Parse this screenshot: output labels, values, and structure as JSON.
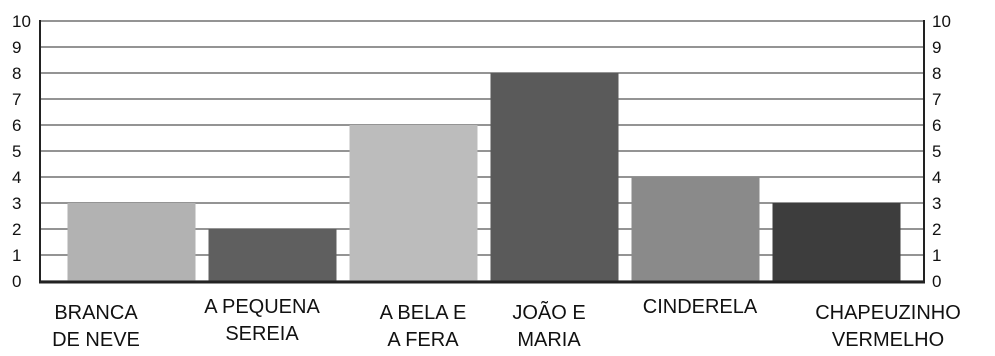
{
  "chart_data": {
    "type": "bar",
    "title": "",
    "xlabel": "",
    "ylabel": "",
    "categories": [
      [
        "BRANCA",
        "DE NEVE"
      ],
      [
        "A PEQUENA",
        "SEREIA"
      ],
      [
        "A BELA E",
        "A FERA"
      ],
      [
        "JOÃO E",
        "MARIA"
      ],
      [
        "CINDERELA"
      ],
      [
        "CHAPEUZINHO",
        "VERMELHO"
      ]
    ],
    "values": [
      3,
      2,
      6,
      8,
      4,
      3
    ],
    "bar_colors": [
      "#b2b2b2",
      "#5f5f5f",
      "#bcbcbc",
      "#5a5a5a",
      "#8a8a8a",
      "#3d3d3d"
    ],
    "ylim": [
      0,
      10
    ],
    "yticks": [
      "0",
      "1",
      "2",
      "3",
      "4",
      "5",
      "6",
      "7",
      "8",
      "9",
      "10"
    ],
    "grid": true,
    "legend": "none",
    "axis_left": true,
    "axis_right": true
  }
}
